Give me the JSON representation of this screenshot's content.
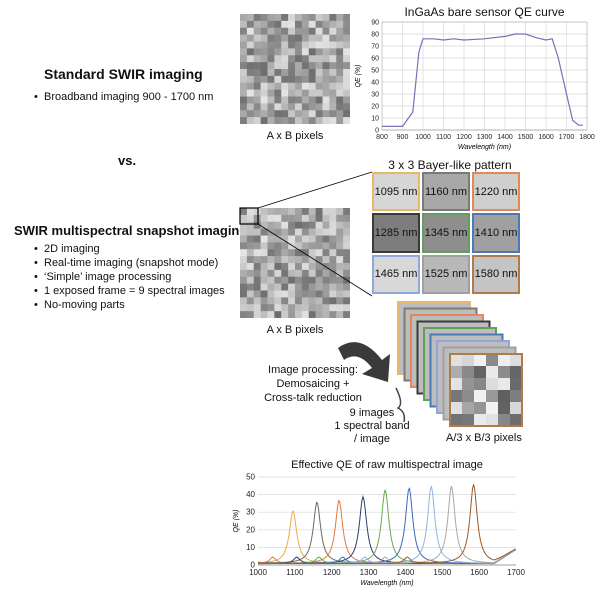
{
  "standard": {
    "title": "Standard SWIR imaging",
    "bullets": [
      "Broadband imaging 900 - 1700 nm"
    ],
    "pixels_label": "A x B pixels"
  },
  "vs_label": "vs.",
  "multispectral": {
    "title": "SWIR multispectral snapshot imaging",
    "bullets": [
      "2D imaging",
      "Real-time imaging (snapshot mode)",
      "‘Simple’ image processing",
      "1 exposed frame = 9 spectral images",
      " No-moving parts"
    ],
    "pixels_label": "A x B pixels"
  },
  "bayer": {
    "title": "3 x 3 Bayer-like pattern",
    "cells": [
      "1095 nm",
      "1160 nm",
      "1220 nm",
      "1285 nm",
      "1345 nm",
      "1410 nm",
      "1465 nm",
      "1525 nm",
      "1580 nm"
    ],
    "colors": [
      "#e8b86a",
      "#7a7a7a",
      "#e08a5a",
      "#3a3a3a",
      "#5fa05a",
      "#4a78b8",
      "#8fa8d8",
      "#a0a0a0",
      "#b07a4a"
    ]
  },
  "processing": {
    "line1": "Image processing:",
    "line2": "Demosaicing +",
    "line3": "Cross-talk reduction",
    "stack_line1": "9 images",
    "stack_line2": "1 spectral band",
    "stack_line3": "/ image",
    "stack_pixels": "A/3 x B/3 pixels"
  },
  "chart_data": [
    {
      "type": "line",
      "title": "InGaAs bare sensor QE curve",
      "xlabel": "Wavelength (nm)",
      "ylabel": "QE (%)",
      "xlim": [
        800,
        1800
      ],
      "ylim": [
        0,
        90
      ],
      "xticks": [
        800,
        900,
        1000,
        1100,
        1200,
        1300,
        1400,
        1500,
        1600,
        1700,
        1800
      ],
      "yticks": [
        0,
        10,
        20,
        30,
        40,
        50,
        60,
        70,
        80,
        90
      ],
      "color": "#7b6fb8",
      "x": [
        800,
        900,
        950,
        980,
        1000,
        1050,
        1100,
        1150,
        1200,
        1300,
        1400,
        1450,
        1500,
        1550,
        1600,
        1630,
        1660,
        1700,
        1730,
        1760,
        1780
      ],
      "y": [
        3,
        3,
        15,
        65,
        76,
        76,
        75,
        76,
        75,
        76,
        78,
        80,
        80,
        77,
        75,
        76,
        60,
        30,
        8,
        4,
        4
      ]
    },
    {
      "type": "line",
      "title": "Effective QE of raw multispectral image",
      "xlabel": "Wavelength (nm)",
      "ylabel": "QE (%)",
      "xlim": [
        1000,
        1700
      ],
      "ylim": [
        0,
        50
      ],
      "xticks": [
        1000,
        1100,
        1200,
        1300,
        1400,
        1500,
        1600,
        1700
      ],
      "yticks": [
        0,
        10,
        20,
        30,
        40,
        50
      ],
      "series": [
        {
          "name": "1095 nm",
          "center": 1095,
          "peak": 30,
          "color": "#e8b040"
        },
        {
          "name": "1160 nm",
          "center": 1160,
          "peak": 35,
          "color": "#6a6a6a"
        },
        {
          "name": "1220 nm",
          "center": 1220,
          "peak": 36,
          "color": "#e07a3a"
        },
        {
          "name": "1285 nm",
          "center": 1285,
          "peak": 38,
          "color": "#2c3e6e"
        },
        {
          "name": "1345 nm",
          "center": 1345,
          "peak": 42,
          "color": "#6aaa4a"
        },
        {
          "name": "1410 nm",
          "center": 1410,
          "peak": 43,
          "color": "#3a6ab8"
        },
        {
          "name": "1465 nm",
          "center": 1470,
          "peak": 44,
          "color": "#8fb4e0"
        },
        {
          "name": "1525 nm",
          "center": 1525,
          "peak": 44,
          "color": "#a8a8a8"
        },
        {
          "name": "1580 nm",
          "center": 1585,
          "peak": 45,
          "color": "#9a5a2a"
        }
      ]
    }
  ]
}
